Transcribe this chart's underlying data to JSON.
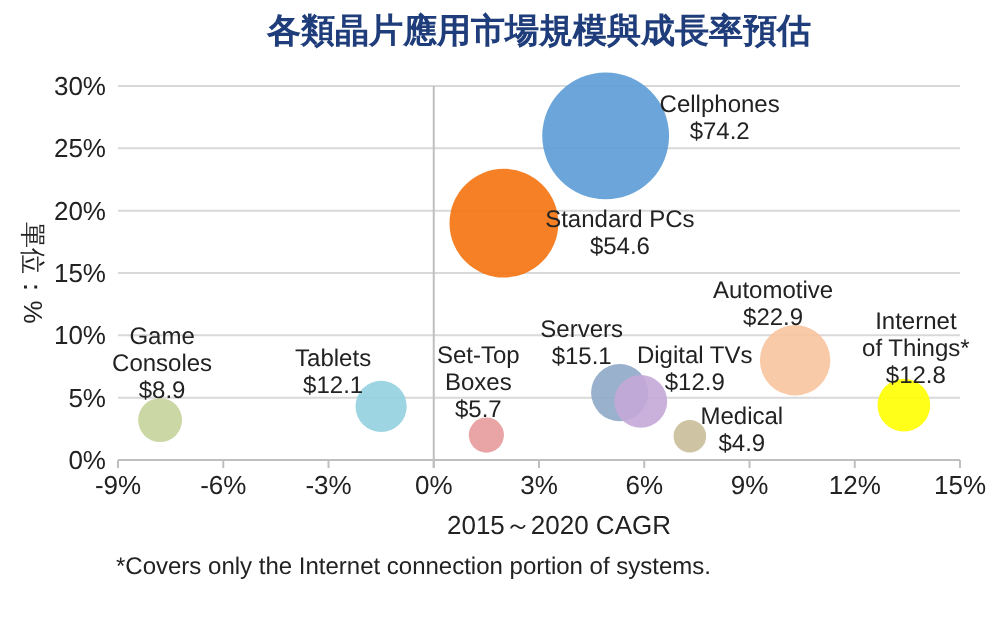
{
  "chart_data": {
    "type": "bubble",
    "title": "各類晶片應用市場規模與成長率預估",
    "xlabel": "2015～2020 CAGR",
    "ylabel": "單位：%",
    "annotations": [
      "*Covers only the Internet connection portion of systems."
    ],
    "xlim": [
      -9,
      15
    ],
    "xticks": [
      {
        "value": -9,
        "label": "-9%"
      },
      {
        "value": -6,
        "label": "-6%"
      },
      {
        "value": -3,
        "label": "-3%"
      },
      {
        "value": 0,
        "label": "0%"
      },
      {
        "value": 3,
        "label": "3%"
      },
      {
        "value": 6,
        "label": "6%"
      },
      {
        "value": 9,
        "label": "9%"
      },
      {
        "value": 12,
        "label": "12%"
      },
      {
        "value": 15,
        "label": "15%"
      }
    ],
    "ylim": [
      0,
      30
    ],
    "yticks": [
      {
        "value": 0,
        "label": "0%"
      },
      {
        "value": 5,
        "label": "5%"
      },
      {
        "value": 10,
        "label": "10%"
      },
      {
        "value": 15,
        "label": "15%"
      },
      {
        "value": 20,
        "label": "20%"
      },
      {
        "value": 25,
        "label": "25%"
      },
      {
        "value": 30,
        "label": "30%"
      }
    ],
    "grid": "y",
    "series": [
      {
        "name": "Cellphones",
        "color": "#5b9bd5",
        "x": [
          4.9
        ],
        "values": [
          26.0
        ],
        "sizes": [
          74.2
        ],
        "value_labels": [
          "$74.2"
        ]
      },
      {
        "name": "Standard PCs",
        "color": "#f4720d",
        "x": [
          2.0
        ],
        "values": [
          19.0
        ],
        "sizes": [
          54.6
        ],
        "value_labels": [
          "$54.6"
        ]
      },
      {
        "name": "Automotive",
        "color": "#f8c49e",
        "x": [
          10.3
        ],
        "values": [
          8.0
        ],
        "sizes": [
          22.9
        ],
        "value_labels": [
          "$22.9"
        ]
      },
      {
        "name": "Internet of Things*",
        "color": "#ffff00",
        "x": [
          13.4
        ],
        "values": [
          4.4
        ],
        "sizes": [
          12.8
        ],
        "value_labels": [
          "$12.8"
        ]
      },
      {
        "name": "Game Consoles",
        "color": "#c5d49b",
        "x": [
          -7.8
        ],
        "values": [
          3.2
        ],
        "sizes": [
          8.9
        ],
        "value_labels": [
          "$8.9"
        ]
      },
      {
        "name": "Tablets",
        "color": "#92d0e0",
        "x": [
          -1.5
        ],
        "values": [
          4.3
        ],
        "sizes": [
          12.1
        ],
        "value_labels": [
          "$12.1"
        ]
      },
      {
        "name": "Set-Top Boxes",
        "color": "#e79a9b",
        "x": [
          1.5
        ],
        "values": [
          2.0
        ],
        "sizes": [
          5.7
        ],
        "value_labels": [
          "$5.7"
        ]
      },
      {
        "name": "Servers",
        "color": "#8fa9c8",
        "x": [
          5.3
        ],
        "values": [
          5.4
        ],
        "sizes": [
          15.1
        ],
        "value_labels": [
          "$15.1"
        ]
      },
      {
        "name": "Digital TVs",
        "color": "#c4a8d8",
        "x": [
          5.9
        ],
        "values": [
          4.7
        ],
        "sizes": [
          12.9
        ],
        "value_labels": [
          "$12.9"
        ]
      },
      {
        "name": "Medical",
        "color": "#c9bd98",
        "x": [
          7.3
        ],
        "values": [
          1.9
        ],
        "sizes": [
          4.9
        ],
        "value_labels": [
          "$4.9"
        ]
      }
    ]
  }
}
